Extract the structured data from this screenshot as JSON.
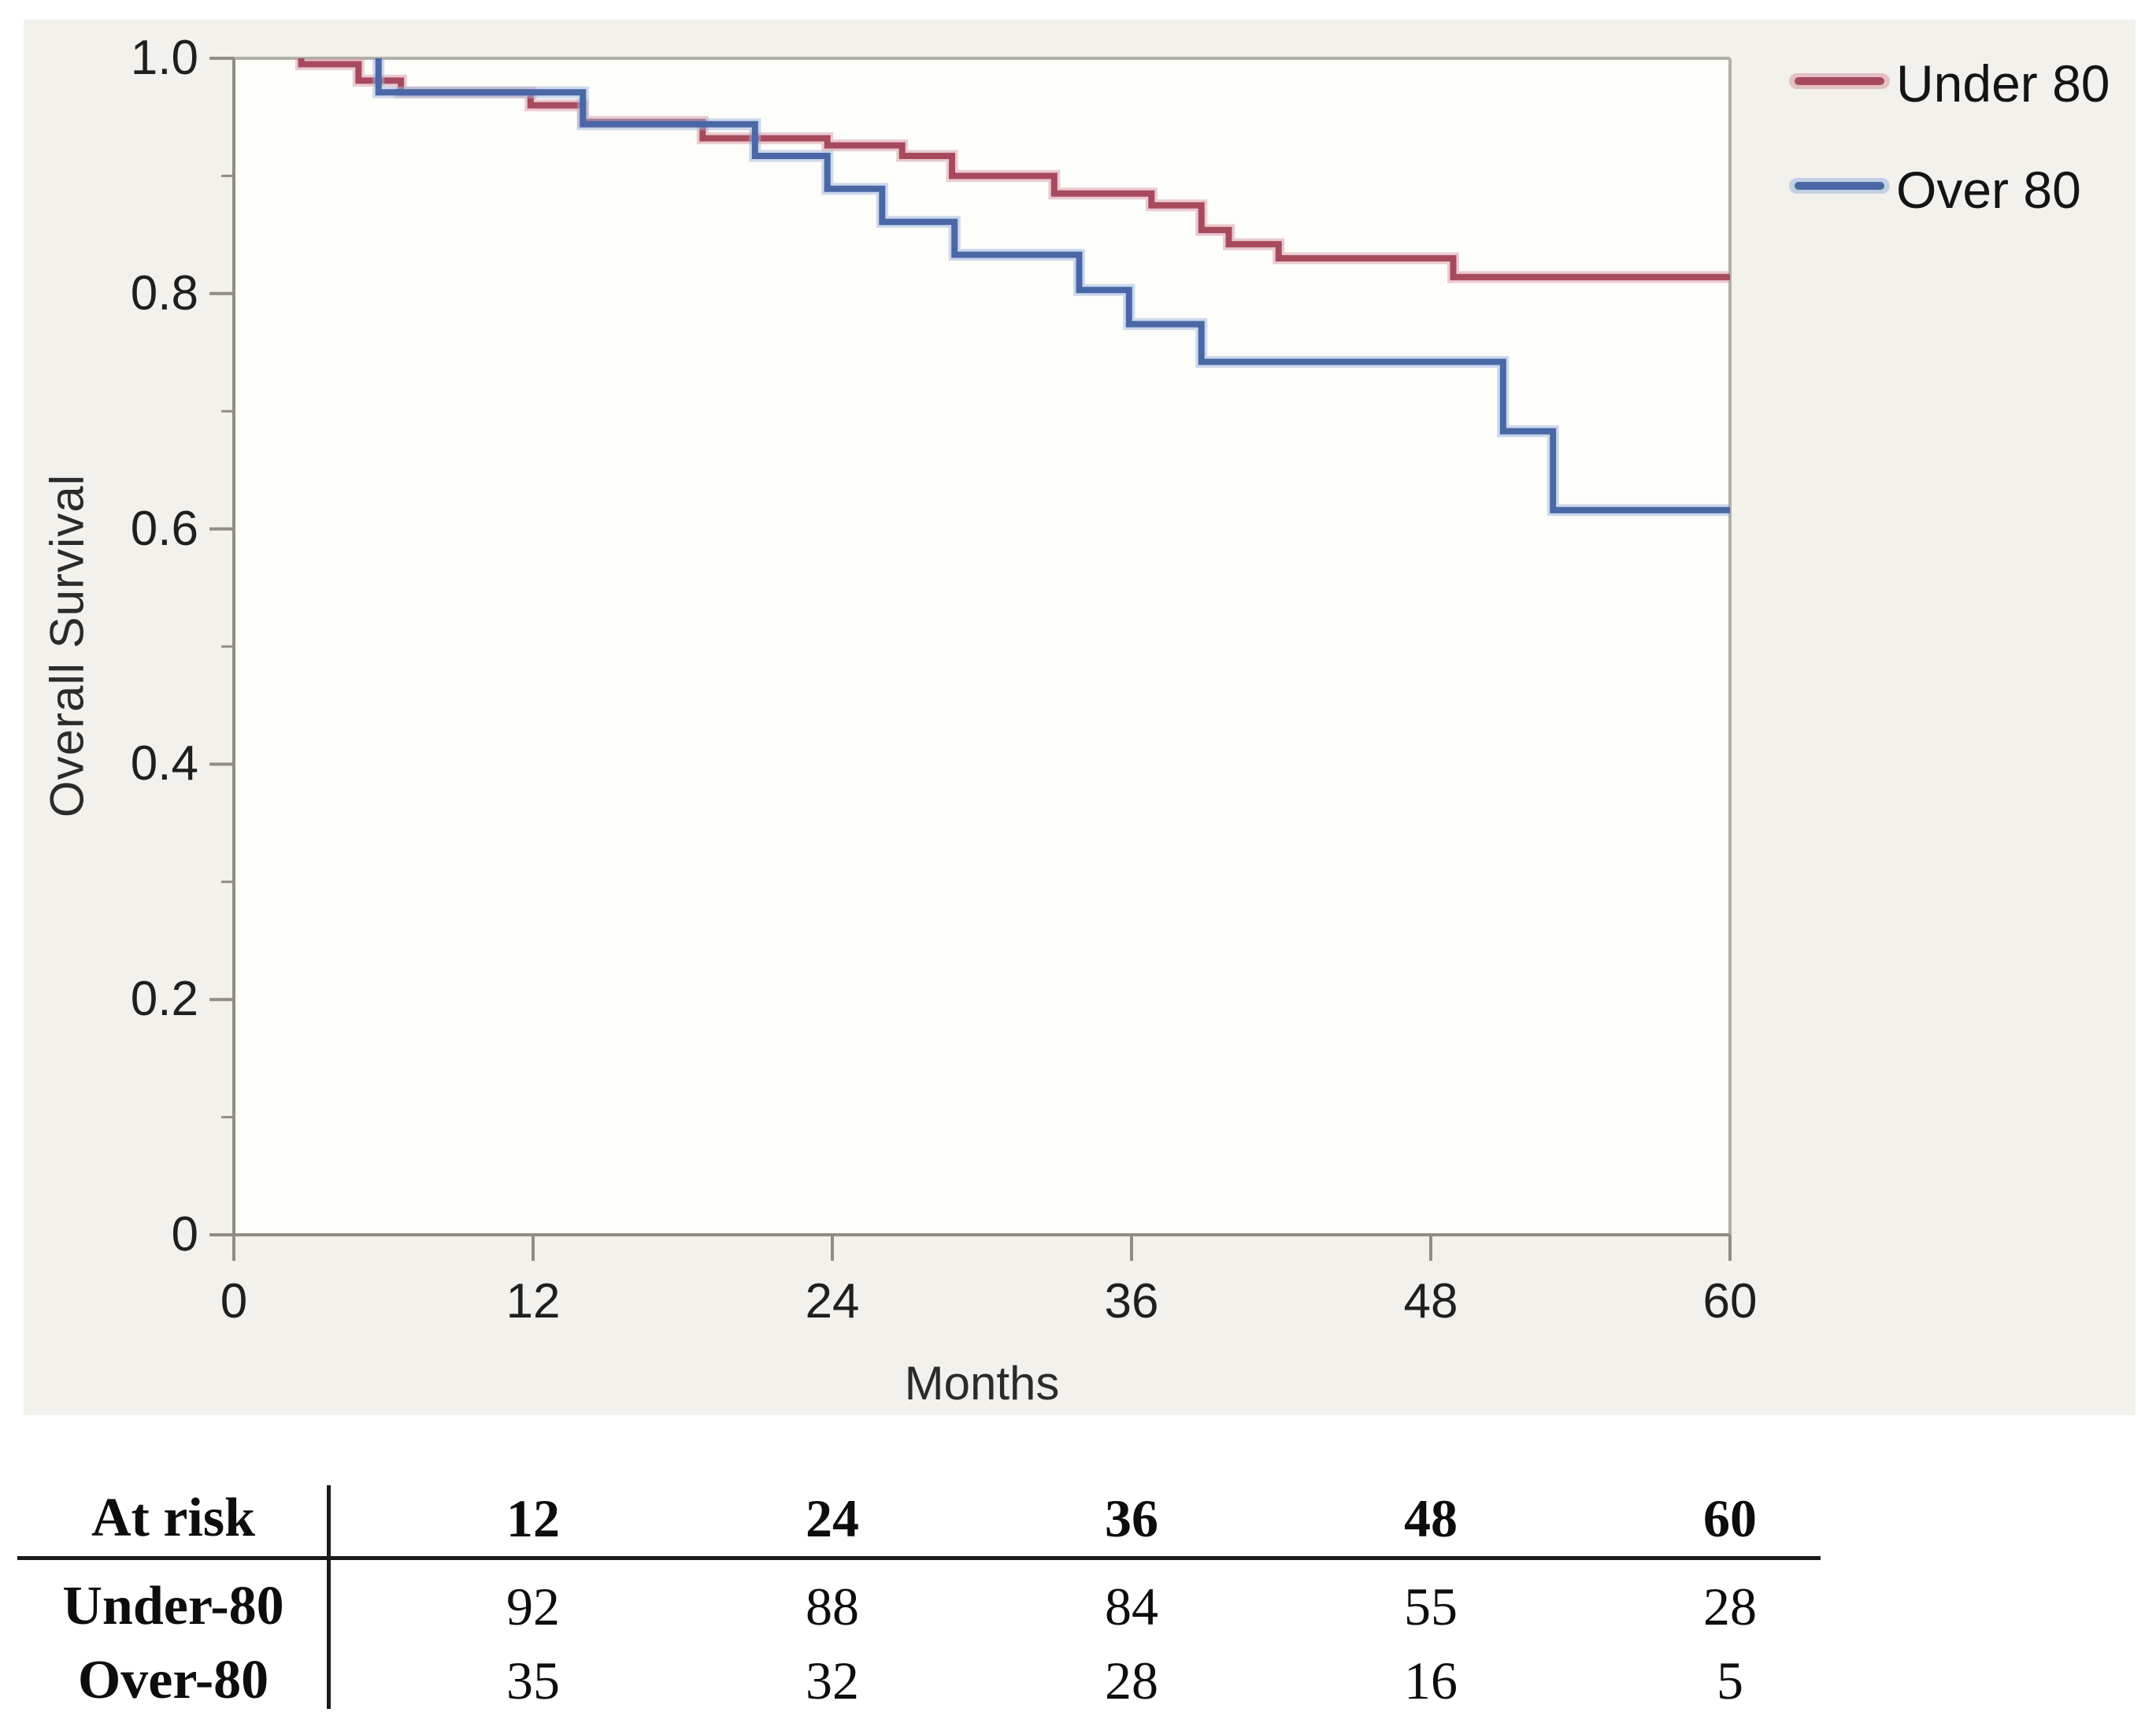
{
  "figure": {
    "y_axis_label": "Overall Survival",
    "x_axis_label": "Months"
  },
  "legend": {
    "items": [
      {
        "label": "Under 80",
        "color": "#a84a5e",
        "halo": "#d898a6"
      },
      {
        "label": "Over 80",
        "color": "#4a67a6",
        "halo": "#9cb4dd"
      }
    ]
  },
  "chart_data": {
    "type": "line",
    "style": "kaplan-meier-step",
    "title": "",
    "xlabel": "Months",
    "ylabel": "Overall Survival",
    "xlim": [
      0,
      60
    ],
    "ylim": [
      0,
      1
    ],
    "grid": false,
    "legend_position": "outside-top-right",
    "x_ticks": [
      0,
      12,
      24,
      36,
      48,
      60
    ],
    "x_tick_labels": [
      "0",
      "12",
      "24",
      "36",
      "48",
      "60"
    ],
    "y_ticks": [
      1.0,
      0.8,
      0.6,
      0.4,
      0.2,
      0
    ],
    "y_tick_labels": [
      "1.0",
      "0.8",
      "0.6",
      "0.4",
      "0.2",
      "0"
    ],
    "y_minor_ticks": [
      0.9,
      0.7,
      0.5,
      0.3,
      0.1
    ],
    "series": [
      {
        "name": "Under 80",
        "color": "#a84a5e",
        "halo": "#d898a6",
        "points": [
          [
            2.7,
            1.0
          ],
          [
            2.7,
            0.995
          ],
          [
            5.0,
            0.981
          ],
          [
            6.7,
            0.971
          ],
          [
            11.9,
            0.96
          ],
          [
            14.0,
            0.946
          ],
          [
            18.8,
            0.932
          ],
          [
            23.8,
            0.926
          ],
          [
            26.8,
            0.917
          ],
          [
            28.8,
            0.9
          ],
          [
            32.9,
            0.885
          ],
          [
            36.8,
            0.875
          ],
          [
            38.8,
            0.854
          ],
          [
            39.9,
            0.842
          ],
          [
            41.9,
            0.83
          ],
          [
            48.9,
            0.814
          ],
          [
            60,
            0.814
          ]
        ]
      },
      {
        "name": "Over 80",
        "color": "#4a67a6",
        "halo": "#9cb4dd",
        "points": [
          [
            5.8,
            1.0
          ],
          [
            5.8,
            0.971
          ],
          [
            14.0,
            0.944
          ],
          [
            20.9,
            0.917
          ],
          [
            23.8,
            0.889
          ],
          [
            26.0,
            0.861
          ],
          [
            28.9,
            0.833
          ],
          [
            33.9,
            0.803
          ],
          [
            35.9,
            0.774
          ],
          [
            38.8,
            0.742
          ],
          [
            50.9,
            0.683
          ],
          [
            52.9,
            0.616
          ],
          [
            60,
            0.616
          ]
        ]
      }
    ]
  },
  "at_risk_table": {
    "corner_label": "At risk",
    "time_points": [
      "12",
      "24",
      "36",
      "48",
      "60"
    ],
    "rows": [
      {
        "label": "Under-80",
        "values": [
          "92",
          "88",
          "84",
          "55",
          "28"
        ]
      },
      {
        "label": "Over-80",
        "values": [
          "35",
          "32",
          "28",
          "16",
          "5"
        ]
      }
    ]
  }
}
